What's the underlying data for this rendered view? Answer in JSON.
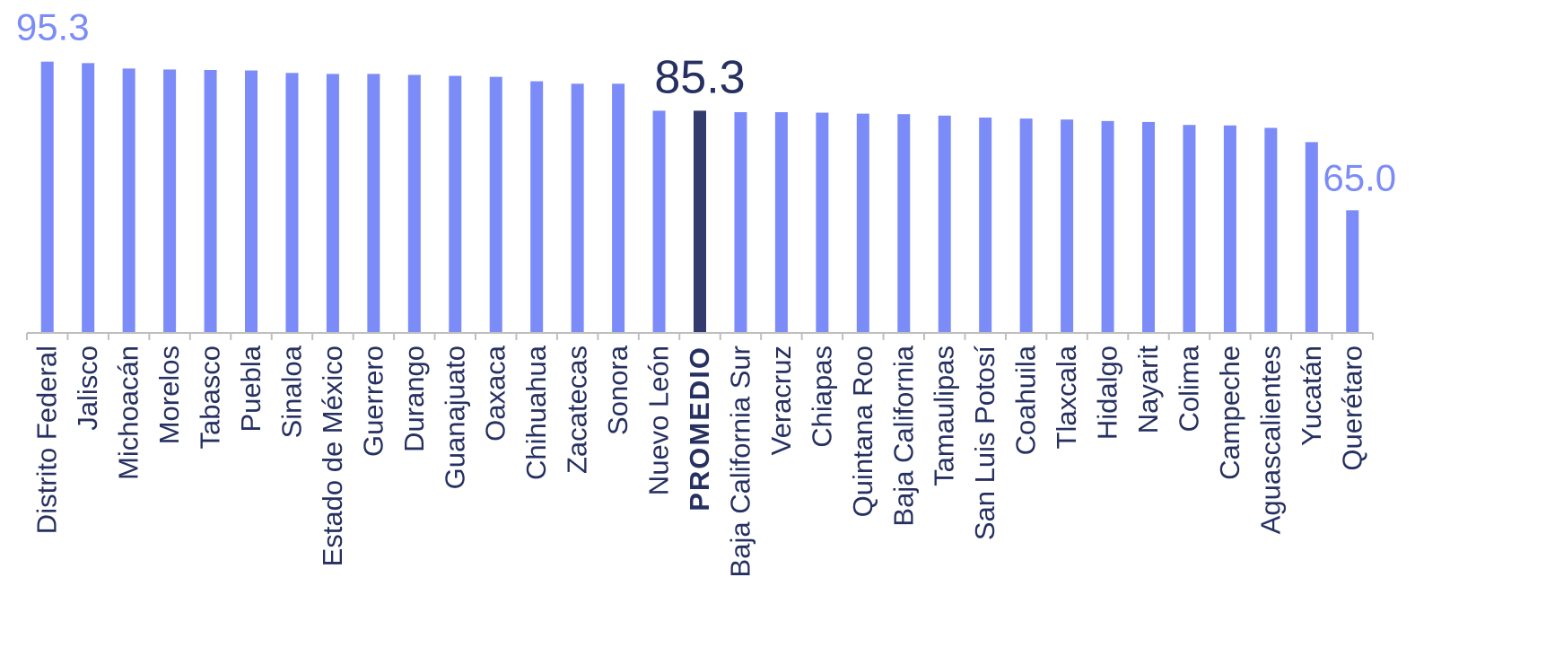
{
  "chart_data": {
    "type": "bar",
    "title": "",
    "xlabel": "",
    "ylabel": "",
    "ylim": [
      40,
      100
    ],
    "grid": false,
    "legend": "none",
    "categories": [
      "Distrito Federal",
      "Jalisco",
      "Michoacán",
      "Morelos",
      "Tabasco",
      "Puebla",
      "Sinaloa",
      "Estado de México",
      "Guerrero",
      "Durango",
      "Guanajuato",
      "Oaxaca",
      "Chihuahua",
      "Zacatecas",
      "Sonora",
      "Nuevo León",
      "PROMEDIO",
      "Baja California Sur",
      "Veracruz",
      "Chiapas",
      "Quintana Roo",
      "Baja California",
      "Tamaulipas",
      "San Luis Potosí",
      "Coahuila",
      "Tlaxcala",
      "Hidalgo",
      "Nayarit",
      "Colima",
      "Campeche",
      "Aguascalientes",
      "Yucatán",
      "Querétaro"
    ],
    "values": [
      95.3,
      95.0,
      93.9,
      93.7,
      93.6,
      93.5,
      93.0,
      92.8,
      92.8,
      92.6,
      92.4,
      92.2,
      91.3,
      90.8,
      90.8,
      85.3,
      85.3,
      85.0,
      85.0,
      84.9,
      84.7,
      84.6,
      84.3,
      83.9,
      83.7,
      83.5,
      83.2,
      83.0,
      82.4,
      82.3,
      81.8,
      78.9,
      65.0
    ],
    "highlight_index": 16,
    "data_labels": [
      {
        "index": 0,
        "text": "95.3"
      },
      {
        "index": 16,
        "text": "85.3"
      },
      {
        "index": 32,
        "text": "65.0"
      }
    ],
    "colors": {
      "bar": "#7b8cf8",
      "highlight": "#333a6e",
      "axis": "#bfbfbf",
      "label_text": "#263061",
      "data_label_accent": "#7b8cf8",
      "data_label_highlight": "#263061"
    }
  }
}
